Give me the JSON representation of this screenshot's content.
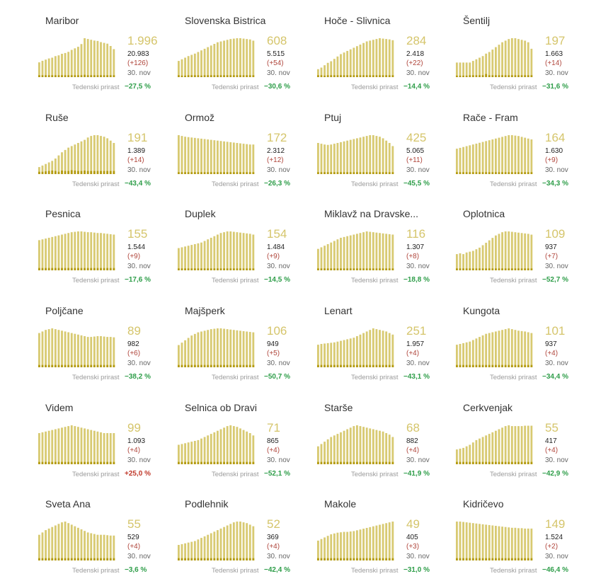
{
  "colors": {
    "bar": "#d8ca72",
    "bar_base": "#b49b12",
    "big_value": "#d5c56b",
    "delta": "#b0463c",
    "growth_negative": "#2f9e4a",
    "growth_positive": "#c0392b"
  },
  "growth_label": "Tedenski prirast",
  "chart_data": [
    {
      "type": "bar",
      "title": "Maribor",
      "value": "1.996",
      "cumulative": "20.983",
      "delta": "(+126)",
      "date": "30. nov",
      "growth": "−27,5 %",
      "growth_sign": "neg",
      "values": [
        38,
        42,
        45,
        48,
        50,
        54,
        56,
        60,
        62,
        65,
        70,
        74,
        78,
        85,
        100,
        98,
        96,
        94,
        93,
        90,
        88,
        86,
        80,
        72
      ],
      "base": [
        5,
        5,
        5,
        5,
        5,
        5,
        5,
        5,
        5,
        5,
        5,
        5,
        5,
        5,
        6,
        5,
        5,
        5,
        5,
        5,
        5,
        5,
        5,
        5
      ]
    },
    {
      "type": "bar",
      "title": "Slovenska Bistrica",
      "value": "608",
      "cumulative": "5.515",
      "delta": "(+54)",
      "date": "30. nov",
      "growth": "−30,6 %",
      "growth_sign": "neg",
      "values": [
        40,
        44,
        48,
        52,
        55,
        58,
        62,
        66,
        70,
        74,
        78,
        82,
        86,
        88,
        90,
        92,
        94,
        95,
        96,
        96,
        95,
        94,
        93,
        90
      ],
      "base": [
        5,
        4,
        4,
        5,
        5,
        5,
        5,
        4,
        5,
        5,
        5,
        5,
        5,
        5,
        5,
        5,
        5,
        5,
        5,
        5,
        5,
        5,
        5,
        5
      ]
    },
    {
      "type": "bar",
      "title": "Hoče - Slivnica",
      "value": "284",
      "cumulative": "2.418",
      "delta": "(+22)",
      "date": "30. nov",
      "growth": "−14,4 %",
      "growth_sign": "neg",
      "values": [
        20,
        24,
        30,
        36,
        40,
        46,
        52,
        58,
        62,
        66,
        70,
        74,
        78,
        82,
        86,
        90,
        92,
        94,
        96,
        98,
        97,
        96,
        95,
        93
      ],
      "base": [
        5,
        5,
        4,
        5,
        5,
        5,
        5,
        5,
        5,
        5,
        5,
        5,
        5,
        5,
        5,
        5,
        5,
        5,
        5,
        5,
        5,
        5,
        5,
        5
      ]
    },
    {
      "type": "bar",
      "title": "Šentilj",
      "value": "197",
      "cumulative": "1.663",
      "delta": "(+14)",
      "date": "30. nov",
      "growth": "−31,6 %",
      "growth_sign": "neg",
      "values": [
        36,
        36,
        36,
        36,
        36,
        40,
        44,
        48,
        52,
        58,
        62,
        68,
        74,
        80,
        86,
        90,
        94,
        96,
        96,
        94,
        92,
        90,
        86,
        70
      ],
      "base": [
        4,
        4,
        4,
        4,
        5,
        5,
        5,
        5,
        5,
        8,
        5,
        5,
        5,
        5,
        5,
        5,
        5,
        5,
        5,
        5,
        5,
        5,
        5,
        5
      ]
    },
    {
      "type": "bar",
      "title": "Ruše",
      "value": "191",
      "cumulative": "1.389",
      "delta": "(+14)",
      "date": "30. nov",
      "growth": "−43,4 %",
      "growth_sign": "neg",
      "values": [
        18,
        22,
        26,
        30,
        34,
        40,
        48,
        56,
        62,
        68,
        72,
        76,
        80,
        84,
        88,
        94,
        98,
        100,
        100,
        98,
        96,
        92,
        86,
        80
      ],
      "base": [
        6,
        6,
        7,
        8,
        9,
        8,
        6,
        9,
        8,
        8,
        10,
        9,
        8,
        8,
        9,
        8,
        8,
        8,
        8,
        8,
        8,
        8,
        8,
        8
      ]
    },
    {
      "type": "bar",
      "title": "Ormož",
      "value": "172",
      "cumulative": "2.312",
      "delta": "(+12)",
      "date": "30. nov",
      "growth": "−26,3 %",
      "growth_sign": "neg",
      "values": [
        100,
        98,
        96,
        95,
        94,
        93,
        92,
        91,
        90,
        89,
        88,
        87,
        86,
        85,
        84,
        83,
        82,
        81,
        80,
        79,
        78,
        77,
        76,
        76
      ],
      "base": [
        5,
        5,
        5,
        5,
        5,
        5,
        5,
        5,
        5,
        5,
        5,
        5,
        5,
        5,
        5,
        5,
        5,
        5,
        5,
        5,
        5,
        5,
        5,
        5
      ]
    },
    {
      "type": "bar",
      "title": "Ptuj",
      "value": "425",
      "cumulative": "5.065",
      "delta": "(+11)",
      "date": "30. nov",
      "growth": "−45,5 %",
      "growth_sign": "neg",
      "values": [
        80,
        78,
        76,
        75,
        76,
        78,
        80,
        82,
        84,
        86,
        88,
        90,
        92,
        94,
        96,
        98,
        100,
        100,
        98,
        96,
        92,
        86,
        80,
        72
      ],
      "base": [
        5,
        5,
        5,
        5,
        5,
        5,
        5,
        5,
        5,
        5,
        5,
        5,
        5,
        5,
        5,
        5,
        5,
        5,
        5,
        5,
        5,
        5,
        5,
        5
      ]
    },
    {
      "type": "bar",
      "title": "Rače - Fram",
      "value": "164",
      "cumulative": "1.630",
      "delta": "(+9)",
      "date": "30. nov",
      "growth": "−34,3 %",
      "growth_sign": "neg",
      "values": [
        60,
        62,
        64,
        66,
        68,
        70,
        72,
        74,
        76,
        78,
        80,
        82,
        84,
        86,
        88,
        90,
        92,
        92,
        91,
        90,
        88,
        86,
        84,
        82
      ],
      "base": [
        5,
        5,
        5,
        5,
        5,
        5,
        5,
        5,
        5,
        5,
        5,
        5,
        5,
        5,
        5,
        5,
        5,
        5,
        5,
        5,
        5,
        5,
        5,
        5
      ]
    },
    {
      "type": "bar",
      "title": "Pesnica",
      "value": "155",
      "cumulative": "1.544",
      "delta": "(+9)",
      "date": "30. nov",
      "growth": "−17,6 %",
      "growth_sign": "neg",
      "values": [
        76,
        78,
        80,
        82,
        84,
        86,
        88,
        90,
        92,
        94,
        96,
        97,
        98,
        98,
        97,
        96,
        96,
        95,
        94,
        94,
        93,
        92,
        91,
        90
      ],
      "base": [
        6,
        6,
        6,
        6,
        6,
        6,
        6,
        6,
        6,
        6,
        6,
        6,
        6,
        6,
        6,
        6,
        6,
        6,
        6,
        6,
        6,
        6,
        6,
        6
      ]
    },
    {
      "type": "bar",
      "title": "Duplek",
      "value": "154",
      "cumulative": "1.484",
      "delta": "(+9)",
      "date": "30. nov",
      "growth": "−14,5 %",
      "growth_sign": "neg",
      "values": [
        56,
        58,
        60,
        62,
        64,
        66,
        68,
        70,
        74,
        78,
        82,
        86,
        90,
        94,
        96,
        98,
        98,
        97,
        96,
        95,
        94,
        93,
        92,
        90
      ],
      "base": [
        5,
        5,
        5,
        5,
        5,
        5,
        5,
        5,
        5,
        5,
        5,
        5,
        5,
        5,
        5,
        5,
        5,
        5,
        5,
        5,
        5,
        5,
        5,
        5
      ]
    },
    {
      "type": "bar",
      "title": "Miklavž na Dravske...",
      "value": "116",
      "cumulative": "1.307",
      "delta": "(+8)",
      "date": "30. nov",
      "growth": "−18,8 %",
      "growth_sign": "neg",
      "values": [
        54,
        58,
        62,
        66,
        70,
        74,
        78,
        82,
        84,
        86,
        88,
        90,
        92,
        94,
        96,
        98,
        97,
        96,
        95,
        94,
        93,
        92,
        91,
        90
      ],
      "base": [
        5,
        5,
        5,
        5,
        5,
        5,
        5,
        5,
        5,
        5,
        5,
        5,
        5,
        5,
        5,
        5,
        5,
        5,
        5,
        5,
        5,
        5,
        5,
        5
      ]
    },
    {
      "type": "bar",
      "title": "Oplotnica",
      "value": "109",
      "cumulative": "937",
      "delta": "(+7)",
      "date": "30. nov",
      "growth": "−52,7 %",
      "growth_sign": "neg",
      "values": [
        40,
        42,
        40,
        44,
        46,
        48,
        52,
        56,
        62,
        68,
        74,
        80,
        86,
        90,
        94,
        96,
        96,
        95,
        94,
        93,
        92,
        91,
        90,
        88
      ],
      "base": [
        5,
        5,
        5,
        5,
        5,
        5,
        5,
        5,
        5,
        5,
        5,
        5,
        5,
        5,
        5,
        5,
        5,
        5,
        5,
        5,
        5,
        5,
        5,
        5
      ]
    },
    {
      "type": "bar",
      "title": "Poljčane",
      "value": "89",
      "cumulative": "982",
      "delta": "(+6)",
      "date": "30. nov",
      "growth": "−38,2 %",
      "growth_sign": "neg",
      "values": [
        88,
        92,
        96,
        98,
        100,
        98,
        96,
        94,
        92,
        90,
        88,
        86,
        84,
        82,
        80,
        78,
        78,
        79,
        80,
        80,
        79,
        78,
        78,
        77
      ],
      "base": [
        6,
        6,
        6,
        6,
        6,
        6,
        6,
        6,
        6,
        6,
        6,
        6,
        6,
        6,
        6,
        6,
        6,
        6,
        6,
        6,
        6,
        6,
        6,
        6
      ]
    },
    {
      "type": "bar",
      "title": "Majšperk",
      "value": "106",
      "cumulative": "949",
      "delta": "(+5)",
      "date": "30. nov",
      "growth": "−50,7 %",
      "growth_sign": "neg",
      "values": [
        56,
        62,
        68,
        74,
        80,
        84,
        88,
        90,
        92,
        94,
        96,
        97,
        98,
        98,
        97,
        96,
        95,
        94,
        93,
        92,
        91,
        90,
        89,
        88
      ],
      "base": [
        6,
        6,
        6,
        6,
        6,
        6,
        6,
        6,
        6,
        6,
        6,
        6,
        6,
        6,
        6,
        6,
        6,
        6,
        6,
        6,
        6,
        6,
        6,
        6
      ]
    },
    {
      "type": "bar",
      "title": "Lenart",
      "value": "251",
      "cumulative": "1.957",
      "delta": "(+4)",
      "date": "30. nov",
      "growth": "−43,1 %",
      "growth_sign": "neg",
      "values": [
        58,
        60,
        61,
        62,
        63,
        64,
        66,
        68,
        70,
        72,
        74,
        76,
        80,
        84,
        88,
        92,
        96,
        100,
        98,
        96,
        94,
        92,
        88,
        84
      ],
      "base": [
        6,
        6,
        6,
        6,
        6,
        6,
        6,
        6,
        6,
        6,
        6,
        6,
        6,
        6,
        6,
        6,
        6,
        6,
        6,
        6,
        6,
        6,
        6,
        6
      ]
    },
    {
      "type": "bar",
      "title": "Kungota",
      "value": "101",
      "cumulative": "937",
      "delta": "(+4)",
      "date": "30. nov",
      "growth": "−34,4 %",
      "growth_sign": "neg",
      "values": [
        58,
        60,
        62,
        64,
        66,
        70,
        74,
        78,
        82,
        86,
        88,
        90,
        92,
        94,
        96,
        98,
        100,
        98,
        96,
        94,
        93,
        92,
        90,
        88
      ],
      "base": [
        6,
        6,
        6,
        6,
        6,
        6,
        6,
        6,
        6,
        6,
        6,
        6,
        6,
        6,
        6,
        6,
        6,
        6,
        6,
        6,
        6,
        6,
        6,
        6
      ]
    },
    {
      "type": "bar",
      "title": "Videm",
      "value": "99",
      "cumulative": "1.093",
      "delta": "(+4)",
      "date": "30. nov",
      "growth": "+25,0 %",
      "growth_sign": "pos",
      "values": [
        80,
        82,
        84,
        86,
        88,
        90,
        92,
        94,
        96,
        98,
        100,
        98,
        96,
        94,
        92,
        90,
        88,
        86,
        84,
        82,
        80,
        80,
        80,
        80
      ],
      "base": [
        6,
        6,
        6,
        6,
        6,
        6,
        6,
        6,
        6,
        6,
        6,
        6,
        6,
        6,
        6,
        6,
        6,
        6,
        6,
        6,
        6,
        6,
        6,
        6
      ]
    },
    {
      "type": "bar",
      "title": "Selnica ob Dravi",
      "value": "71",
      "cumulative": "865",
      "delta": "(+4)",
      "date": "30. nov",
      "growth": "−52,1 %",
      "growth_sign": "neg",
      "values": [
        50,
        52,
        54,
        56,
        58,
        60,
        62,
        66,
        70,
        74,
        78,
        82,
        86,
        90,
        94,
        98,
        100,
        98,
        96,
        92,
        88,
        84,
        80,
        74
      ],
      "base": [
        6,
        6,
        6,
        6,
        6,
        6,
        6,
        6,
        6,
        6,
        6,
        6,
        6,
        6,
        6,
        6,
        6,
        6,
        6,
        6,
        6,
        6,
        6,
        6
      ]
    },
    {
      "type": "bar",
      "title": "Starše",
      "value": "68",
      "cumulative": "882",
      "delta": "(+4)",
      "date": "30. nov",
      "growth": "−41,9 %",
      "growth_sign": "neg",
      "values": [
        46,
        52,
        58,
        64,
        70,
        74,
        78,
        82,
        86,
        90,
        94,
        98,
        100,
        98,
        96,
        94,
        92,
        90,
        88,
        86,
        84,
        80,
        76,
        70
      ],
      "base": [
        6,
        6,
        6,
        6,
        6,
        6,
        6,
        6,
        6,
        6,
        6,
        6,
        6,
        6,
        6,
        6,
        6,
        6,
        6,
        6,
        6,
        6,
        6,
        6
      ]
    },
    {
      "type": "bar",
      "title": "Cerkvenjak",
      "value": "55",
      "cumulative": "417",
      "delta": "(+4)",
      "date": "30. nov",
      "growth": "−42,9 %",
      "growth_sign": "neg",
      "values": [
        38,
        40,
        42,
        46,
        50,
        56,
        62,
        66,
        70,
        74,
        78,
        82,
        86,
        90,
        94,
        98,
        100,
        98,
        98,
        98,
        98,
        99,
        99,
        99
      ],
      "base": [
        6,
        6,
        6,
        6,
        6,
        6,
        6,
        6,
        6,
        6,
        6,
        6,
        6,
        6,
        6,
        6,
        6,
        6,
        6,
        6,
        6,
        6,
        6,
        6
      ]
    },
    {
      "type": "bar",
      "title": "Sveta Ana",
      "value": "55",
      "cumulative": "529",
      "delta": "(+4)",
      "date": "30. nov",
      "growth": "−3,6 %",
      "growth_sign": "neg",
      "values": [
        66,
        72,
        78,
        82,
        86,
        90,
        94,
        98,
        100,
        96,
        92,
        88,
        84,
        80,
        76,
        72,
        70,
        68,
        66,
        66,
        66,
        65,
        64,
        64
      ],
      "base": [
        6,
        6,
        6,
        6,
        6,
        6,
        6,
        6,
        6,
        6,
        6,
        6,
        6,
        6,
        6,
        6,
        6,
        6,
        6,
        6,
        6,
        6,
        6,
        6
      ]
    },
    {
      "type": "bar",
      "title": "Podlehnik",
      "value": "52",
      "cumulative": "369",
      "delta": "(+4)",
      "date": "30. nov",
      "growth": "−42,4 %",
      "growth_sign": "neg",
      "values": [
        40,
        42,
        44,
        46,
        48,
        50,
        54,
        58,
        62,
        66,
        70,
        74,
        78,
        82,
        86,
        90,
        94,
        98,
        100,
        100,
        98,
        96,
        92,
        88
      ],
      "base": [
        6,
        6,
        6,
        6,
        6,
        6,
        6,
        6,
        6,
        6,
        6,
        6,
        6,
        6,
        6,
        6,
        6,
        6,
        6,
        6,
        6,
        6,
        6,
        6
      ]
    },
    {
      "type": "bar",
      "title": "Makole",
      "value": "49",
      "cumulative": "405",
      "delta": "(+3)",
      "date": "30. nov",
      "growth": "−31,0 %",
      "growth_sign": "neg",
      "values": [
        50,
        54,
        58,
        62,
        66,
        68,
        70,
        71,
        72,
        72,
        73,
        74,
        76,
        78,
        80,
        82,
        84,
        86,
        88,
        90,
        92,
        94,
        96,
        98
      ],
      "base": [
        6,
        6,
        6,
        6,
        6,
        6,
        6,
        6,
        6,
        6,
        6,
        6,
        6,
        6,
        6,
        6,
        6,
        6,
        6,
        6,
        6,
        6,
        6,
        6
      ]
    },
    {
      "type": "bar",
      "title": "Kidričevo",
      "value": "149",
      "cumulative": "1.524",
      "delta": "(+2)",
      "date": "30. nov",
      "growth": "−46,4 %",
      "growth_sign": "neg",
      "values": [
        100,
        100,
        99,
        98,
        97,
        96,
        95,
        94,
        93,
        92,
        91,
        90,
        89,
        88,
        87,
        86,
        85,
        84,
        84,
        83,
        83,
        82,
        82,
        82
      ],
      "base": [
        6,
        6,
        6,
        6,
        6,
        6,
        6,
        6,
        6,
        6,
        6,
        6,
        6,
        6,
        6,
        6,
        6,
        6,
        6,
        6,
        6,
        6,
        6,
        6
      ]
    }
  ]
}
